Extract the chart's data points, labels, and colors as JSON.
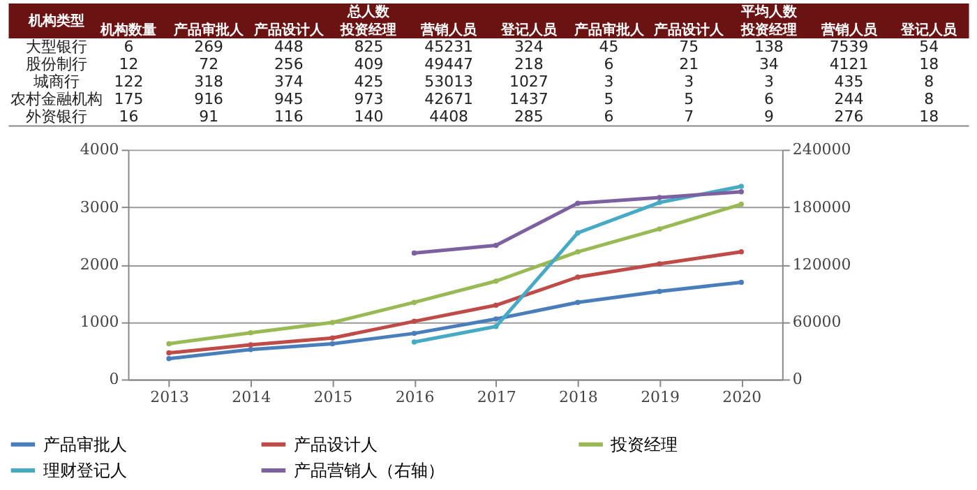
{
  "chart_data": [
    {
      "type": "heatmap",
      "ylabel": "机构类型",
      "data_labels": true,
      "annotations": [
        "总人数",
        "平均人数"
      ],
      "categories": [
        "机构数量",
        "产品审批人",
        "产品设计人",
        "投资经理",
        "营销人员",
        "登记人员",
        "产品审批人",
        "产品设计人",
        "投资经理",
        "营销人员",
        "登记人员"
      ],
      "y_categories": [
        "大型银行",
        "股份制行",
        "城商行",
        "农村金融机构",
        "外资银行"
      ],
      "cells": [
        [
          6,
          269,
          448,
          825,
          45231,
          324,
          45,
          75,
          138,
          7539,
          54
        ],
        [
          12,
          72,
          256,
          409,
          49447,
          218,
          6,
          21,
          34,
          4121,
          18
        ],
        [
          122,
          318,
          374,
          425,
          53013,
          1027,
          3,
          3,
          3,
          435,
          8
        ],
        [
          175,
          916,
          945,
          973,
          42671,
          1437,
          5,
          5,
          6,
          244,
          8
        ],
        [
          16,
          91,
          116,
          140,
          4408,
          285,
          6,
          7,
          9,
          276,
          18
        ]
      ]
    },
    {
      "type": "line",
      "categories": [
        "2013",
        "2014",
        "2015",
        "2016",
        "2017",
        "2018",
        "2019",
        "2020"
      ],
      "ylim": [
        0,
        4000
      ],
      "yticks": [
        0,
        1000,
        2000,
        3000,
        4000
      ],
      "y2lim": [
        0,
        240000
      ],
      "y2ticks": [
        0,
        60000,
        120000,
        180000,
        240000
      ],
      "grid": "y",
      "legend": "bottom",
      "marker": "circle",
      "line_style": "solid",
      "series": [
        {
          "name": "产品审批人",
          "color": "#4a7ebb",
          "values": [
            360,
            520,
            620,
            800,
            1050,
            1340,
            1530,
            1690
          ]
        },
        {
          "name": "产品设计人",
          "color": "#be4b48",
          "values": [
            460,
            600,
            720,
            1010,
            1290,
            1780,
            2010,
            2220
          ]
        },
        {
          "name": "投资经理",
          "color": "#98b954",
          "values": [
            620,
            810,
            990,
            1340,
            1710,
            2220,
            2620,
            3050
          ]
        },
        {
          "name": "理财登记人",
          "color": "#46aac5",
          "values": [
            null,
            null,
            null,
            650,
            920,
            2550,
            3080,
            3360
          ]
        },
        {
          "name": "产品营销人（右轴）",
          "color": "#7d60a0",
          "axis": "y2",
          "values": [
            null,
            null,
            null,
            132000,
            140000,
            184000,
            190000,
            196000
          ]
        }
      ]
    }
  ]
}
